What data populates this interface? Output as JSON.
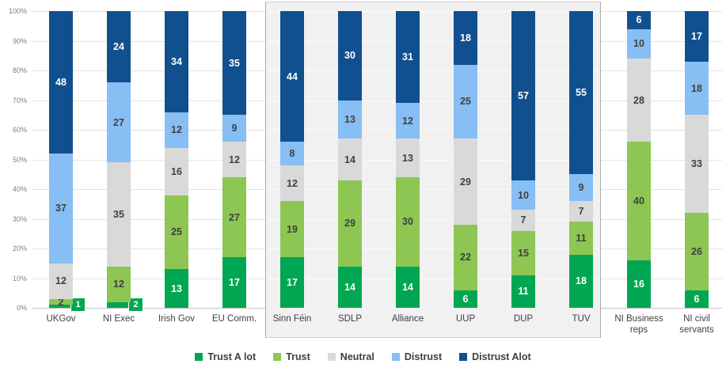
{
  "chart_data": {
    "type": "bar",
    "stacked": true,
    "unit": "%",
    "title": "",
    "xlabel": "",
    "ylabel": "",
    "ylim": [
      0,
      100
    ],
    "y_ticks": [
      "0%",
      "10%",
      "20%",
      "30%",
      "40%",
      "50%",
      "60%",
      "70%",
      "80%",
      "90%",
      "100%"
    ],
    "grid": true,
    "legend_position": "bottom",
    "categories": [
      "UKGov",
      "NI Exec",
      "Irish Gov",
      "EU Comm.",
      "Sinn Féin",
      "SDLP",
      "Alliance",
      "UUP",
      "DUP",
      "TUV",
      "NI Business reps",
      "NI civil servants"
    ],
    "series": [
      {
        "name": "Trust A lot",
        "color": "#00A651",
        "label_color": "#ffffff",
        "values": [
          1,
          2,
          13,
          17,
          17,
          14,
          14,
          6,
          11,
          18,
          16,
          6
        ]
      },
      {
        "name": "Trust",
        "color": "#8DC653",
        "label_color": "#404040",
        "values": [
          2,
          12,
          25,
          27,
          19,
          29,
          30,
          22,
          15,
          11,
          40,
          26
        ]
      },
      {
        "name": "Neutral",
        "color": "#D9D9D9",
        "label_color": "#404040",
        "values": [
          12,
          35,
          16,
          12,
          12,
          14,
          13,
          29,
          7,
          7,
          28,
          33
        ]
      },
      {
        "name": "Distrust",
        "color": "#87BEF3",
        "label_color": "#404040",
        "values": [
          37,
          27,
          12,
          9,
          8,
          13,
          12,
          25,
          10,
          9,
          10,
          18
        ]
      },
      {
        "name": "Distrust Alot",
        "color": "#11508F",
        "label_color": "#ffffff",
        "values": [
          48,
          24,
          34,
          35,
          44,
          30,
          31,
          18,
          57,
          55,
          6,
          17
        ]
      }
    ],
    "highlight_panel": {
      "from_category": "Sinn Féin",
      "to_category": "TUV"
    },
    "callout_labels": [
      {
        "category": "UKGov",
        "series": "Trust A lot",
        "value": 1
      },
      {
        "category": "NI Exec",
        "series": "Trust A lot",
        "value": 2
      }
    ]
  }
}
